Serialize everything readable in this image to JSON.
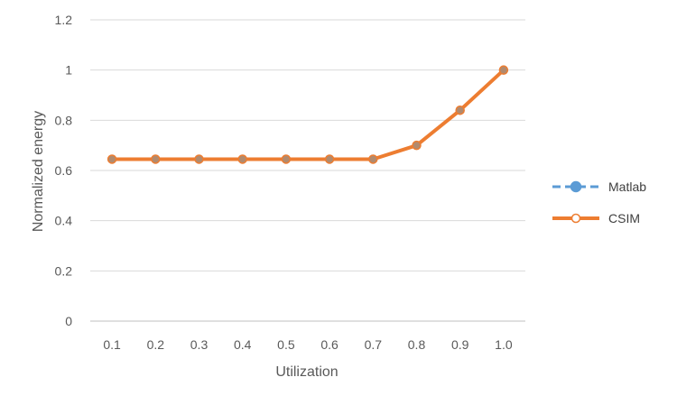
{
  "chart_data": {
    "type": "line",
    "title": "",
    "xlabel": "Utilization",
    "ylabel": "Normalized energy",
    "categories": [
      "0.1",
      "0.2",
      "0.3",
      "0.4",
      "0.5",
      "0.6",
      "0.7",
      "0.8",
      "0.9",
      "1.0"
    ],
    "ylim": [
      0,
      1.2
    ],
    "yticks": [
      "0",
      "0.2",
      "0.4",
      "0.6",
      "0.8",
      "1",
      "1.2"
    ],
    "grid": true,
    "legend_position": "right",
    "series": [
      {
        "name": "Matlab",
        "color": "#5B9BD5",
        "style": "dashed",
        "marker": "filled-circle",
        "values": [
          0.645,
          0.645,
          0.645,
          0.645,
          0.645,
          0.645,
          0.645,
          0.7,
          0.84,
          1.0
        ]
      },
      {
        "name": "CSIM",
        "color": "#ED7D31",
        "style": "solid",
        "marker": "hollow-circle",
        "values": [
          0.645,
          0.645,
          0.645,
          0.645,
          0.645,
          0.645,
          0.645,
          0.7,
          0.84,
          1.0
        ]
      }
    ]
  }
}
